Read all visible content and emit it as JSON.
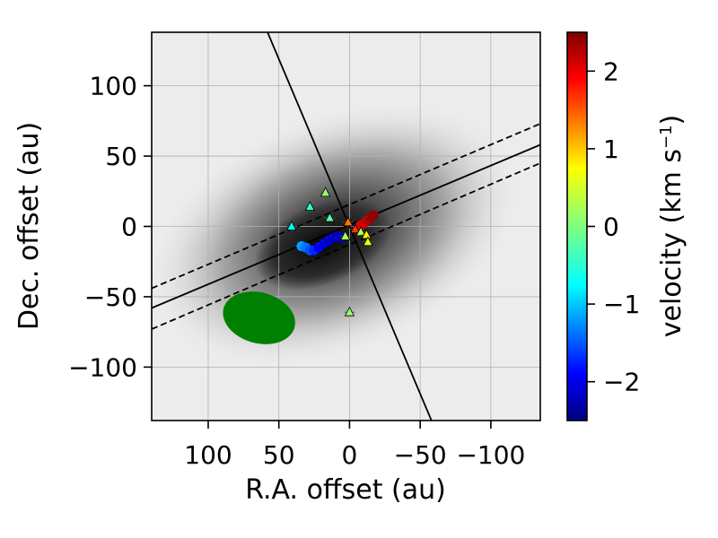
{
  "chart_data": {
    "type": "scatter",
    "xlabel": "R.A. offset (au)",
    "ylabel": "Dec. offset (au)",
    "x_inverted": true,
    "xlim": [
      140,
      -135
    ],
    "ylim": [
      -138,
      138
    ],
    "x_ticks": [
      100,
      50,
      0,
      -50,
      -100
    ],
    "x_tick_labels": [
      "100",
      "50",
      "0",
      "−50",
      "−100"
    ],
    "y_ticks": [
      100,
      50,
      0,
      -50,
      -100
    ],
    "y_tick_labels": [
      "100",
      "50",
      "0",
      "−50",
      "−100"
    ],
    "grid": true,
    "background": "grayscale intensity map, dark peak near the origin, elongated along the major axis",
    "colorbar": {
      "label": "velocity (km s",
      "label_sup": "−1",
      "label_close": ")",
      "range": [
        -2.5,
        2.5
      ],
      "ticks": [
        2,
        1,
        0,
        -1,
        -2
      ],
      "tick_labels": [
        "2",
        "1",
        "0",
        "−1",
        "−2"
      ],
      "colormap": "jet"
    },
    "lines": [
      {
        "name": "major-axis",
        "style": "solid",
        "points": [
          [
            140,
            -58
          ],
          [
            -135,
            58
          ]
        ]
      },
      {
        "name": "major-axis-upper",
        "style": "dashed",
        "points": [
          [
            140,
            -44
          ],
          [
            -135,
            73
          ]
        ]
      },
      {
        "name": "major-axis-lower",
        "style": "dashed",
        "points": [
          [
            140,
            -73
          ],
          [
            -135,
            45
          ]
        ]
      },
      {
        "name": "minor-axis",
        "style": "solid",
        "points": [
          [
            58,
            138
          ],
          [
            -58,
            -138
          ]
        ]
      }
    ],
    "beam": {
      "x": 64,
      "y": -65,
      "major": 52,
      "minor": 36,
      "pa_deg": 15,
      "color": "#008000"
    },
    "circle_points": [
      {
        "x": 34,
        "y": -14,
        "v": -1.1
      },
      {
        "x": 31,
        "y": -15,
        "v": -1.3
      },
      {
        "x": 28,
        "y": -17,
        "v": -1.5
      },
      {
        "x": 25,
        "y": -17,
        "v": -1.7
      },
      {
        "x": 22,
        "y": -15,
        "v": -1.9
      },
      {
        "x": 18,
        "y": -12,
        "v": -2.05
      },
      {
        "x": 15,
        "y": -10,
        "v": -2.1
      },
      {
        "x": 12,
        "y": -8,
        "v": -2.15
      },
      {
        "x": 9,
        "y": -7,
        "v": -2.2
      },
      {
        "x": 6,
        "y": -8,
        "v": -2.15
      },
      {
        "x": -8,
        "y": 1,
        "v": 2.0
      },
      {
        "x": -10,
        "y": 2,
        "v": 2.1
      },
      {
        "x": -12,
        "y": 4,
        "v": 2.2
      },
      {
        "x": -14,
        "y": 6,
        "v": 2.3
      },
      {
        "x": -16,
        "y": 7,
        "v": 2.4
      },
      {
        "x": -17,
        "y": 8,
        "v": 2.4
      }
    ],
    "triangle_points": [
      {
        "x": 17,
        "y": 24,
        "v": 0.1
      },
      {
        "x": 28,
        "y": 14,
        "v": -0.4
      },
      {
        "x": 14,
        "y": 6,
        "v": -0.2
      },
      {
        "x": 41,
        "y": 0,
        "v": -0.6
      },
      {
        "x": 1,
        "y": 3,
        "v": 1.3
      },
      {
        "x": -4,
        "y": -2,
        "v": 1.6
      },
      {
        "x": -8,
        "y": -4,
        "v": 0.3
      },
      {
        "x": 3,
        "y": -7,
        "v": 0.2
      },
      {
        "x": -12,
        "y": -6,
        "v": 0.6
      },
      {
        "x": -13,
        "y": -11,
        "v": 0.55
      },
      {
        "x": 0,
        "y": -61,
        "v": 0.1
      }
    ]
  }
}
